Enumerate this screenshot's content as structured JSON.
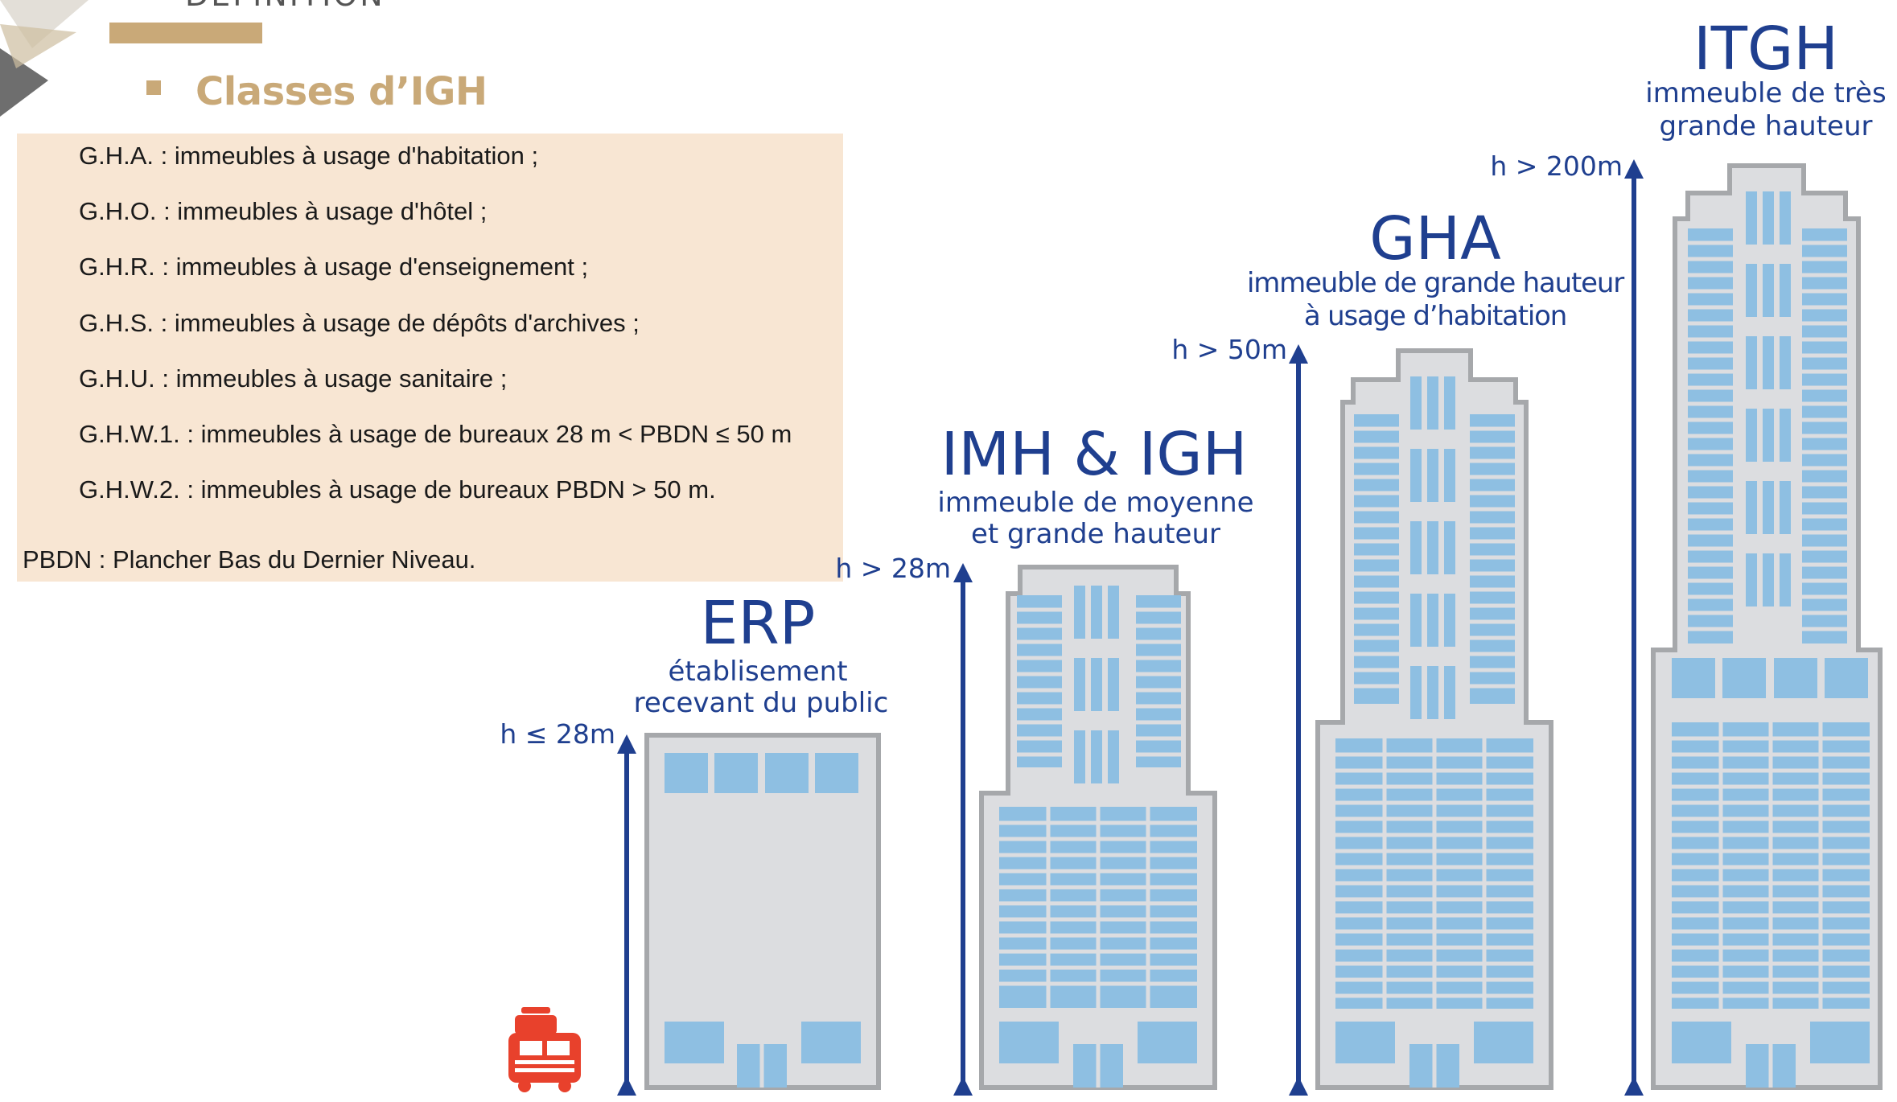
{
  "header": {
    "section_title": "DÉFINITION",
    "heading": "Classes d’IGH"
  },
  "classes": [
    {
      "text": "G.H.A. : immeubles à usage d'habitation ;"
    },
    {
      "text": "G.H.O. : immeubles à usage d'hôtel ;"
    },
    {
      "text": "G.H.R. : immeubles à usage d'enseignement ;"
    },
    {
      "text": "G.H.S. : immeubles à usage de dépôts d'archives ;"
    },
    {
      "text": "G.H.U. : immeubles à usage sanitaire ;"
    },
    {
      "text": "G.H.W.1. : immeubles à usage de bureaux 28 m < PBDN ≤ 50 m"
    },
    {
      "text": "G.H.W.2. : immeubles à usage de bureaux PBDN > 50 m."
    }
  ],
  "note": "PBDN : Plancher Bas du Dernier Niveau.",
  "buildings": [
    {
      "title": "ERP",
      "subtitle_line1": "établisement",
      "subtitle_line2": "recevant du public",
      "height_label": "h ≤ 28m"
    },
    {
      "title": "IMH & IGH",
      "subtitle_line1": "immeuble de moyenne",
      "subtitle_line2": "et grande hauteur",
      "height_label": "h > 28m"
    },
    {
      "title": "GHA",
      "subtitle_line1": "immeuble de grande hauteur",
      "subtitle_line2": "à usage d’habitation",
      "height_label": "h > 50m"
    },
    {
      "title": "ITGH",
      "subtitle_line1": "immeuble de très",
      "subtitle_line2": "grande hauteur",
      "height_label": "h > 200m"
    }
  ],
  "icons": {
    "fire_truck": "fire-truck-icon"
  },
  "colors": {
    "gold": "#c9a978",
    "panel": "#f8e6d3",
    "blue": "#1f3f8f",
    "window": "#8ebfe2",
    "building": "#dcdde0",
    "outline": "#a6a8ab",
    "truck": "#e8412c"
  }
}
